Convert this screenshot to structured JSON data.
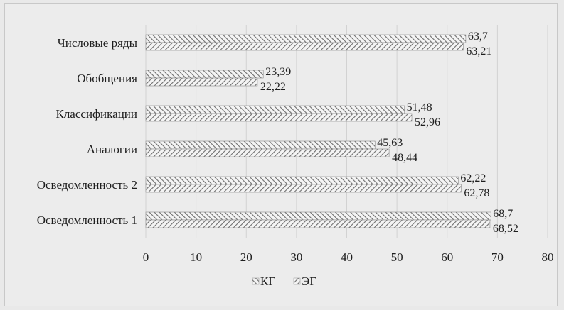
{
  "chart_data": {
    "type": "bar",
    "orientation": "horizontal",
    "categories": [
      "Числовые ряды",
      "Обобщения",
      "Классификации",
      "Аналогии",
      "Осведомленность 2",
      "Осведомленность 1"
    ],
    "series": [
      {
        "name": "КГ",
        "values": [
          63.7,
          23.39,
          51.48,
          45.63,
          62.22,
          68.7
        ],
        "labels": [
          "63,7",
          "23,39",
          "51,48",
          "45,63",
          "62,22",
          "68,7"
        ]
      },
      {
        "name": "ЭГ",
        "values": [
          63.21,
          22.22,
          52.96,
          48.44,
          62.78,
          68.52
        ],
        "labels": [
          "63,21",
          "22,22",
          "52,96",
          "48,44",
          "62,78",
          "68,52"
        ]
      }
    ],
    "xlim": [
      0,
      80
    ],
    "xticks": [
      0,
      10,
      20,
      30,
      40,
      50,
      60,
      70,
      80
    ],
    "xticklabels": [
      "0",
      "10",
      "20",
      "30",
      "40",
      "50",
      "60",
      "70",
      "80"
    ],
    "grid": "vertical",
    "legend": "bottom-center",
    "colors": {
      "bar_fill": "#f4f4f4",
      "bar_hatch": "#6e6e6e",
      "grid": "#d2d2d2",
      "text": "#1e1e1e"
    }
  }
}
